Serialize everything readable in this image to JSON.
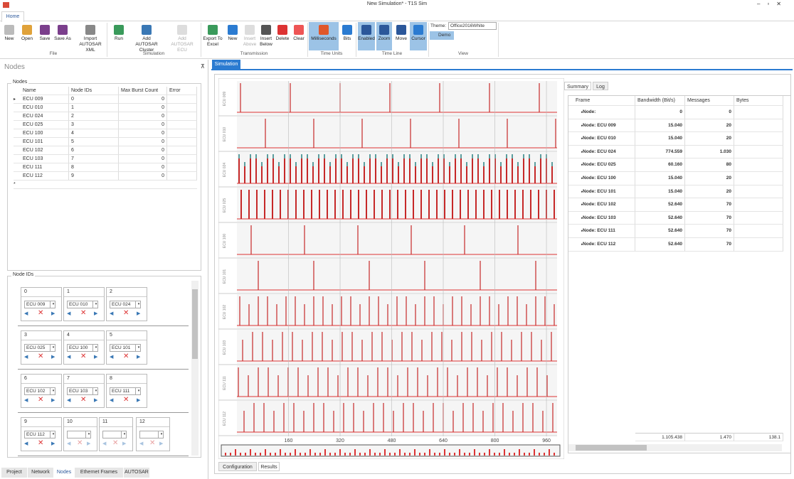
{
  "window_title": "New Simulation* - T1S Sim",
  "ribbon": {
    "tab": "Home",
    "groups": [
      {
        "label": "File",
        "buttons": [
          "New",
          "Open",
          "Save",
          "Save As",
          "Import AUTOSAR XML"
        ]
      },
      {
        "label": "Simulation",
        "buttons": [
          "Run",
          "Add AUTOSAR Cluster",
          "Add AUTOSAR ECU"
        ]
      },
      {
        "label": "Transmission",
        "buttons": [
          "Export To Excel",
          "New",
          "Insert Above",
          "Insert Below",
          "Delete",
          "Clear"
        ]
      },
      {
        "label": "Time Units",
        "buttons": [
          "Milliseconds",
          "Bits"
        ]
      },
      {
        "label": "Time Line",
        "buttons": [
          "Enabled",
          "Zoom",
          "Move",
          "Cursor"
        ]
      },
      {
        "label": "View",
        "theme_label": "Theme:",
        "theme": "Office2016White",
        "demo": "Demo"
      }
    ]
  },
  "nodes_panel": {
    "title": "Nodes",
    "nodes_group": "Nodes",
    "columns": [
      "Name",
      "Node IDs",
      "Max Burst Count",
      "Error"
    ],
    "rows": [
      [
        "ECU 009",
        "0",
        "0"
      ],
      [
        "ECU 010",
        "1",
        "0"
      ],
      [
        "ECU 024",
        "2",
        "0"
      ],
      [
        "ECU 025",
        "3",
        "0"
      ],
      [
        "ECU 100",
        "4",
        "0"
      ],
      [
        "ECU 101",
        "5",
        "0"
      ],
      [
        "ECU 102",
        "6",
        "0"
      ],
      [
        "ECU 103",
        "7",
        "0"
      ],
      [
        "ECU 111",
        "8",
        "0"
      ],
      [
        "ECU 112",
        "9",
        "0"
      ]
    ],
    "ids_group": "Node IDs",
    "ids": [
      {
        "id": "0",
        "ecu": "ECU 009"
      },
      {
        "id": "1",
        "ecu": "ECU 010"
      },
      {
        "id": "2",
        "ecu": "ECU 024"
      },
      {
        "id": "3",
        "ecu": "ECU 025"
      },
      {
        "id": "4",
        "ecu": "ECU 100"
      },
      {
        "id": "5",
        "ecu": "ECU 101"
      },
      {
        "id": "6",
        "ecu": "ECU 102"
      },
      {
        "id": "7",
        "ecu": "ECU 103"
      },
      {
        "id": "8",
        "ecu": "ECU 111"
      },
      {
        "id": "9",
        "ecu": "ECU 112"
      },
      {
        "id": "10"
      },
      {
        "id": "11"
      },
      {
        "id": "12"
      }
    ],
    "tabs": [
      "Project",
      "Network",
      "Nodes",
      "Ethernet Frames",
      "AUTOSAR"
    ]
  },
  "simulation": {
    "tab": "Simulation",
    "lanes": [
      "ECU 009",
      "ECU 010",
      "ECU 024",
      "ECU 025",
      "ECU 100",
      "ECU 101",
      "ECU 102",
      "ECU 103",
      "ECU 111",
      "ECU 112"
    ],
    "xlim": [
      0,
      993
    ],
    "xticks": [
      160,
      320,
      480,
      640,
      800,
      960
    ],
    "summary_tabs": [
      "Summary",
      "Log"
    ],
    "columns": [
      "Frame",
      "Bandwidth (Bit/s)",
      "Messages",
      "Bytes"
    ],
    "rows": [
      [
        "Node:",
        "0",
        "0"
      ],
      [
        "Node: ECU 009",
        "15.040",
        "20"
      ],
      [
        "Node: ECU 010",
        "15.040",
        "20"
      ],
      [
        "Node: ECU 024",
        "774.559",
        "1.030"
      ],
      [
        "Node: ECU 025",
        "60.160",
        "80"
      ],
      [
        "Node: ECU 100",
        "15.040",
        "20"
      ],
      [
        "Node: ECU 101",
        "15.040",
        "20"
      ],
      [
        "Node: ECU 102",
        "52.640",
        "70"
      ],
      [
        "Node: ECU 103",
        "52.640",
        "70"
      ],
      [
        "Node: ECU 111",
        "52.640",
        "70"
      ],
      [
        "Node: ECU 112",
        "52.640",
        "70"
      ]
    ],
    "totals": [
      "1.105.438",
      "1.470",
      "138.1"
    ],
    "bottom_tabs": [
      "Configuration",
      "Results"
    ]
  }
}
